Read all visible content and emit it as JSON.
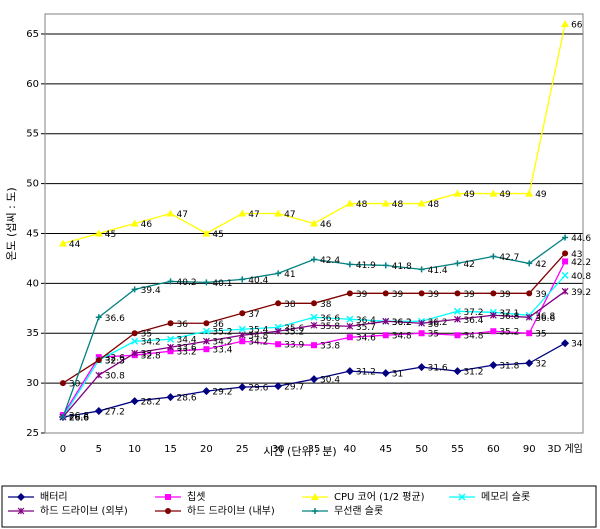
{
  "chart_data": {
    "type": "line",
    "x_label": "시간 (단위 : 분)",
    "y_label": "온도 (섭씨 : 도)",
    "categories": [
      "0",
      "5",
      "10",
      "15",
      "20",
      "25",
      "30",
      "35",
      "40",
      "45",
      "50",
      "55",
      "60",
      "90",
      "3D 게임"
    ],
    "ylim": [
      25,
      67
    ],
    "yticks": [
      25,
      30,
      35,
      40,
      45,
      50,
      55,
      60,
      65
    ],
    "grid": true,
    "legend": "bottom",
    "series": [
      {
        "name": "배터리",
        "color": "#000080",
        "marker": "diamond",
        "values": [
          26.6,
          27.2,
          28.2,
          28.6,
          29.2,
          29.6,
          29.7,
          30.4,
          31.2,
          31,
          31.6,
          31.2,
          31.8,
          32,
          34
        ]
      },
      {
        "name": "칩셋",
        "color": "#ff00ff",
        "marker": "square",
        "values": [
          26.8,
          32.6,
          32.8,
          33.2,
          33.4,
          34.2,
          33.9,
          33.8,
          34.6,
          34.8,
          35,
          34.8,
          35.2,
          35,
          42.2
        ]
      },
      {
        "name": "CPU 코어 (1/2 평균)",
        "color": "#ffff00",
        "marker": "triangle",
        "values": [
          44,
          45,
          46,
          47,
          45,
          47,
          47,
          46,
          48,
          48,
          48,
          49,
          49,
          49,
          66
        ]
      },
      {
        "name": "메모리 슬롯",
        "color": "#00ffff",
        "marker": "x",
        "values": [
          26.6,
          32.3,
          34.2,
          34.4,
          35.2,
          35.4,
          35.6,
          36.6,
          36.4,
          36.2,
          36.2,
          37.2,
          37.1,
          36.8,
          40.8
        ]
      },
      {
        "name": "하드 드라이브 (외부)",
        "color": "#800080",
        "marker": "star",
        "values": [
          26.6,
          30.8,
          33,
          33.6,
          34.2,
          34.8,
          35.2,
          35.8,
          35.7,
          36.2,
          36,
          36.4,
          36.8,
          36.6,
          39.2
        ]
      },
      {
        "name": "하드 드라이브 (내부)",
        "color": "#800000",
        "marker": "circle",
        "values": [
          30,
          32.3,
          35,
          36,
          36,
          37,
          38,
          38,
          39,
          39,
          39,
          39,
          39,
          39,
          43
        ]
      },
      {
        "name": "무선랜 슬롯",
        "color": "#008080",
        "marker": "plus",
        "values": [
          26.6,
          36.6,
          39.4,
          40.2,
          40.1,
          40.4,
          41,
          42.4,
          41.9,
          41.8,
          41.4,
          42,
          42.7,
          42,
          44.6
        ]
      }
    ]
  }
}
